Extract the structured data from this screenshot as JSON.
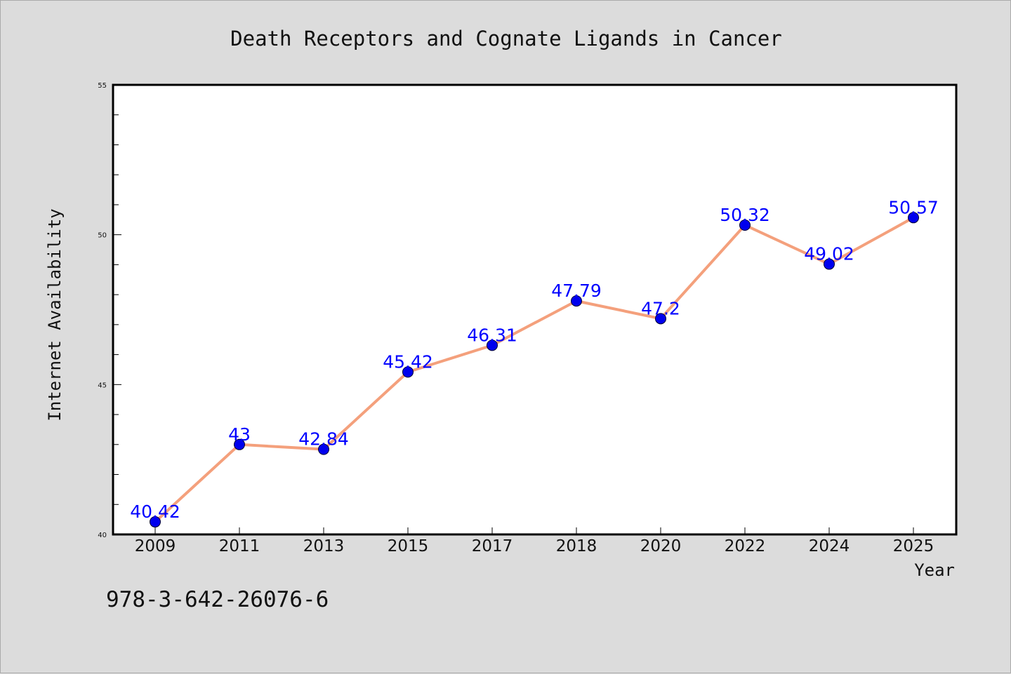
{
  "chart_data": {
    "type": "line",
    "title": "Death Receptors and Cognate Ligands in Cancer",
    "xlabel": "Year",
    "ylabel": "Internet Availability",
    "categories": [
      "2009",
      "2011",
      "2013",
      "2015",
      "2017",
      "2018",
      "2020",
      "2022",
      "2024",
      "2025"
    ],
    "series": [
      {
        "values": [
          40.42,
          43,
          42.84,
          45.42,
          46.31,
          47.79,
          47.2,
          50.32,
          49.02,
          50.57
        ],
        "labels": [
          "40.42",
          "43",
          "42.84",
          "45.42",
          "46.31",
          "47.79",
          "47.2",
          "50.32",
          "49.02",
          "50.57"
        ]
      }
    ],
    "ylim": [
      40,
      55
    ],
    "y_major_ticks": [
      40,
      45,
      50,
      55
    ],
    "y_minor_step": 1,
    "grid": false,
    "legend": "none",
    "colors": {
      "line": "#f4a07c",
      "marker": "#0000ee",
      "label": "#0000ff",
      "background": "#dcdcdc",
      "plot_background": "#ffffff"
    }
  },
  "footer": {
    "isbn": "978-3-642-26076-6"
  }
}
